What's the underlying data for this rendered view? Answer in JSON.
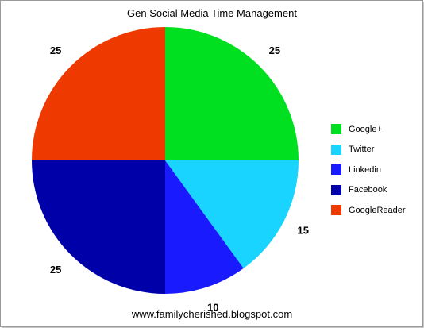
{
  "chart_data": {
    "type": "pie",
    "title": "Gen Social Media Time Management",
    "categories": [
      "Google+",
      "Twitter",
      "Linkedin",
      "Facebook",
      "GoogleReader"
    ],
    "values": [
      25,
      15,
      10,
      25,
      25
    ],
    "colors": [
      "#00e020",
      "#18d4ff",
      "#1a1aff",
      "#0000a8",
      "#ee3a00"
    ],
    "slice_labels": [
      "25",
      "15",
      "10",
      "25",
      "25"
    ],
    "start": "12 o'clock",
    "direction": "clockwise",
    "legend_placement": "right"
  },
  "footer": "www.familycherished.blogspot.com"
}
